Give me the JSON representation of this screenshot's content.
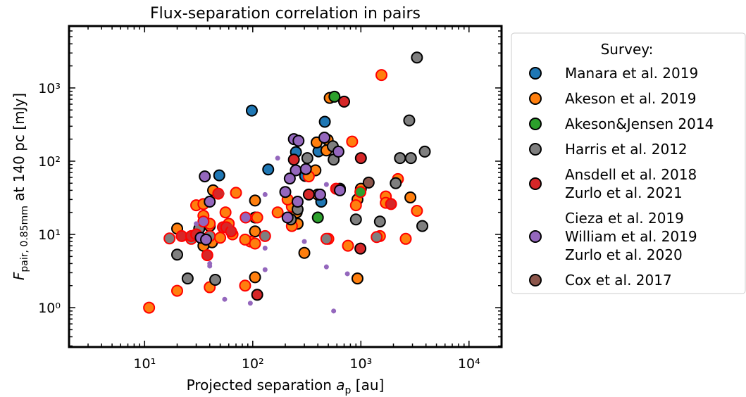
{
  "chart_data": {
    "type": "scatter",
    "title": "Flux-separation correlation in pairs",
    "xlabel": [
      "Projected separation ",
      "a",
      "p",
      " [au]"
    ],
    "ylabel": [
      "F",
      "pair, 0.85mm",
      " at 140 pc [mJy]"
    ],
    "xscale": "log",
    "yscale": "log",
    "xlim": [
      2,
      20000
    ],
    "ylim": [
      0.29,
      7000
    ],
    "xticks": [
      {
        "value": 10,
        "label": "10¹"
      },
      {
        "value": 100,
        "label": "10²"
      },
      {
        "value": 1000,
        "label": "10³"
      },
      {
        "value": 10000,
        "label": "10⁴"
      }
    ],
    "yticks": [
      {
        "value": 1,
        "label": "10⁰"
      },
      {
        "value": 10,
        "label": "10¹"
      },
      {
        "value": 100,
        "label": "10²"
      },
      {
        "value": 1000,
        "label": "10³"
      }
    ],
    "legend_title": "Survey:",
    "legend_loc": "outside right",
    "series": [
      {
        "name": "Manara et al. 2019",
        "color": "#1f77b4",
        "x": [
          98,
          139,
          49,
          251,
          305,
          405,
          464,
          430
        ],
        "y": [
          490,
          77,
          64,
          133,
          63,
          136,
          345,
          28
        ],
        "edgecolors": [
          "#000000",
          "#000000",
          "#000000",
          "#000000",
          "#000000",
          "#000000",
          "#000000",
          "#000000"
        ]
      },
      {
        "name": "Akeson et al. 2019",
        "color": "#ff7f0e",
        "x": [
          515,
          493,
          400,
          255,
          260,
          105,
          105,
          105,
          105,
          43,
          40,
          42,
          35,
          20,
          1000,
          930,
          1750,
          2870,
          300,
          380,
          390,
          480,
          930,
          1550,
          830,
          11,
          20,
          40,
          85,
          95,
          105,
          85,
          70,
          110,
          170,
          230,
          230,
          210,
          330,
          500,
          760,
          900,
          1700,
          1700,
          2200,
          1500,
          2600,
          3300,
          30,
          35,
          35,
          37,
          40,
          60,
          65,
          50,
          56
        ],
        "y": [
          730,
          195,
          35,
          20,
          14,
          29,
          17,
          11,
          2.6,
          40,
          13,
          7.8,
          7,
          12,
          42,
          2.5,
          28,
          32,
          5.6,
          75,
          180,
          140,
          30,
          1500,
          185,
          1.0,
          1.7,
          1.9,
          2.0,
          8,
          7.5,
          8.5,
          37,
          17,
          20,
          13,
          24,
          30,
          62,
          8.7,
          7,
          25,
          33,
          27,
          57,
          9.5,
          8.7,
          21,
          25,
          18,
          26,
          8.5,
          14,
          14,
          10,
          9,
          20
        ],
        "edgecolors": [
          "#000000",
          "#000000",
          "#000000",
          "#000000",
          "#000000",
          "#000000",
          "#000000",
          "#000000",
          "#000000",
          "#000000",
          "#000000",
          "#000000",
          "#000000",
          "#000000",
          "#000000",
          "#000000",
          "#000000",
          "#000000",
          "#000000",
          "#000000",
          "#000000",
          "#000000",
          "#000000",
          "#ff0000",
          "#ff0000",
          "#ff0000",
          "#ff0000",
          "#ff0000",
          "#ff0000",
          "#ff0000",
          "#ff0000",
          "#ff0000",
          "#ff0000",
          "#ff0000",
          "#ff0000",
          "#ff0000",
          "#ff0000",
          "#ff0000",
          "#ff0000",
          "#ff0000",
          "#ff0000",
          "#ff0000",
          "#ff0000",
          "#ff0000",
          "#ff0000",
          "#ff0000",
          "#ff0000",
          "#ff0000",
          "#ff0000",
          "#ff0000",
          "#ff0000",
          "#ff0000",
          "#ff0000",
          "#ff0000",
          "#ff0000",
          "#ff0000",
          "#ff0000"
        ]
      },
      {
        "name": "Akeson&Jensen 2014",
        "color": "#2ca02c",
        "x": [
          570,
          400,
          990
        ],
        "y": [
          760,
          17,
          38
        ],
        "edgecolors": [
          "#000000",
          "#000000",
          "#ff0000"
        ]
      },
      {
        "name": "Harris et al. 2012",
        "color": "#7f7f7f",
        "x": [
          3300,
          2800,
          2900,
          2300,
          3900,
          2100,
          1500,
          900,
          560,
          640,
          320,
          20,
          32,
          25,
          45,
          225,
          260,
          3700,
          550,
          17,
          27,
          40,
          130,
          480,
          1400
        ],
        "y": [
          2600,
          360,
          110,
          110,
          135,
          50,
          15,
          16,
          105,
          42,
          110,
          5.3,
          12,
          2.5,
          2.4,
          16,
          22,
          13,
          160,
          8.8,
          8.7,
          9.5,
          9.5,
          8.7,
          9.2
        ],
        "edgecolors": [
          "#000000",
          "#000000",
          "#000000",
          "#000000",
          "#000000",
          "#000000",
          "#000000",
          "#000000",
          "#000000",
          "#000000",
          "#000000",
          "#000000",
          "#000000",
          "#000000",
          "#000000",
          "#000000",
          "#000000",
          "#000000",
          "#000000",
          "#ff0000",
          "#ff0000",
          "#ff0000",
          "#ff0000",
          "#ff0000",
          "#ff0000"
        ]
      },
      {
        "name": [
          "Ansdell et al. 2018",
          "Zurlo et al. 2021"
        ],
        "color": "#d62728",
        "x": [
          700,
          1000,
          240,
          330,
          990,
          110,
          22,
          27,
          30,
          38,
          53,
          57,
          63,
          48,
          590,
          1900,
          52,
          62
        ],
        "y": [
          650,
          110,
          105,
          35,
          6.4,
          1.5,
          9.5,
          9.5,
          10,
          5.2,
          12.5,
          12.5,
          11,
          36,
          42,
          26,
          36,
          13
        ],
        "edgecolors": [
          "#000000",
          "#000000",
          "#000000",
          "#000000",
          "#000000",
          "#000000",
          "#ff0000",
          "#ff0000",
          "#ff0000",
          "#ff0000",
          "#ff0000",
          "#ff0000",
          "#ff0000",
          "#ff0000",
          "#ff0000",
          "#ff0000",
          null,
          null
        ]
      },
      {
        "name": [
          "Cieza et al. 2019",
          "William et al. 2019",
          "Zurlo et al. 2020"
        ],
        "color": "#9467bd",
        "x": [
          240,
          265,
          460,
          36,
          250,
          310,
          220,
          200,
          260,
          420,
          640,
          620,
          210,
          40,
          33,
          37,
          86,
          35,
          170,
          130,
          130,
          130,
          40,
          40,
          55,
          95,
          480,
          560,
          480,
          750,
          300,
          30
        ],
        "y": [
          200,
          190,
          210,
          62,
          75,
          78,
          58,
          38,
          28,
          35,
          40,
          135,
          17,
          28,
          9,
          8.5,
          17,
          15,
          110,
          35,
          6.5,
          3.3,
          3.7,
          4,
          1.3,
          1.15,
          48,
          0.9,
          3.6,
          2.9,
          8,
          14
        ],
        "edgecolors": [
          "#000000",
          "#000000",
          "#000000",
          "#000000",
          "#000000",
          "#000000",
          "#000000",
          "#000000",
          "#000000",
          "#000000",
          "#000000",
          "#000000",
          "#000000",
          "#000000",
          "#000000",
          "#000000",
          "#ff0000",
          "#ff0000",
          null,
          null,
          null,
          null,
          null,
          null,
          null,
          null,
          null,
          null,
          null,
          null,
          null,
          null
        ]
      },
      {
        "name": "Cox et al. 2017",
        "color": "#8c564b",
        "x": [
          1180
        ],
        "y": [
          51
        ],
        "edgecolors": [
          "#000000"
        ]
      }
    ]
  }
}
